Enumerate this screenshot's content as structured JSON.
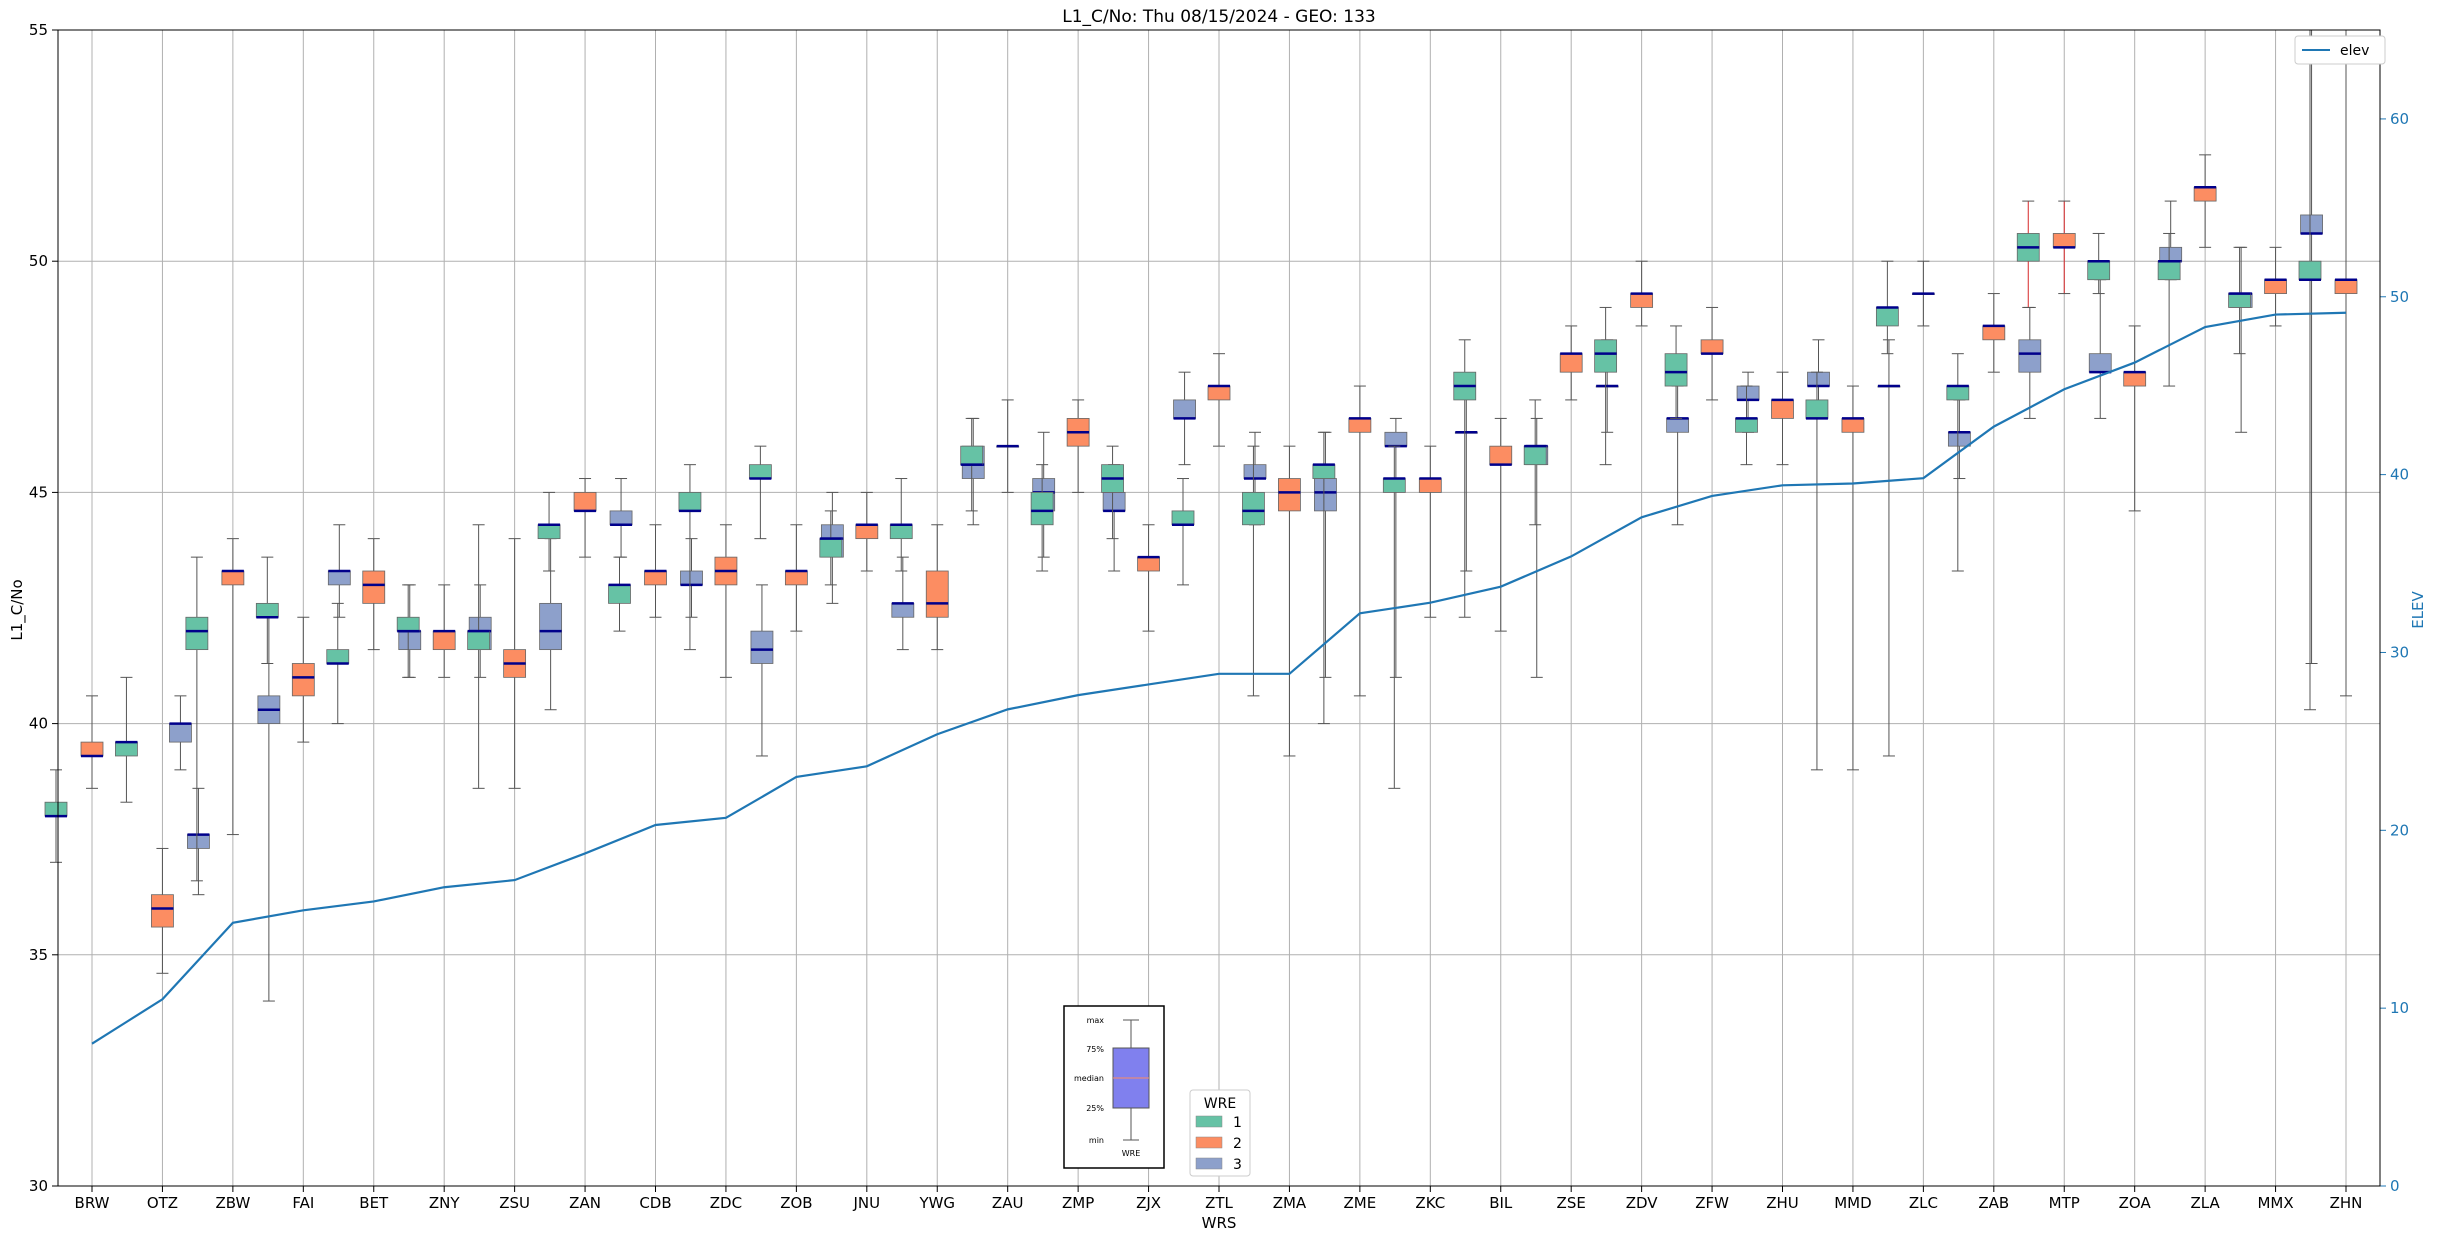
{
  "chart_data": {
    "type": "box",
    "title": "L1_C/No: Thu 08/15/2024 - GEO: 133",
    "xlabel": "WRS",
    "ylabel": "L1_C/No",
    "y2label": "ELEV",
    "ylim": [
      30,
      55
    ],
    "y2lim": [
      0,
      65
    ],
    "yticks": [
      30,
      35,
      40,
      45,
      50,
      55
    ],
    "y2ticks": [
      0,
      10,
      20,
      30,
      40,
      50,
      60
    ],
    "grid": true,
    "categories": [
      "BRW",
      "OTZ",
      "ZBW",
      "FAI",
      "BET",
      "ZNY",
      "ZSU",
      "ZAN",
      "CDB",
      "ZDC",
      "ZOB",
      "JNU",
      "YWG",
      "ZAU",
      "ZMP",
      "ZJX",
      "ZTL",
      "ZMA",
      "ZME",
      "ZKC",
      "BIL",
      "ZSE",
      "ZDV",
      "ZFW",
      "ZHU",
      "MMD",
      "ZLC",
      "ZAB",
      "MTP",
      "ZOA",
      "ZLA",
      "MMX",
      "ZHN"
    ],
    "colors": {
      "1": "#66c2a5",
      "2": "#fc8d62",
      "3": "#8da0cb",
      "elev": "#1f77b4",
      "median": "#00008b"
    },
    "box_legend": {
      "title": "WRE",
      "entries": [
        "1",
        "2",
        "3"
      ]
    },
    "line_legend": {
      "entries": [
        "elev"
      ]
    },
    "inset_key": {
      "labels": [
        "max",
        "75%",
        "median",
        "25%",
        "min"
      ],
      "xlabel": "WRE"
    },
    "elev_series": {
      "name": "elev",
      "values": [
        8.0,
        10.5,
        14.8,
        15.5,
        16.0,
        16.8,
        17.2,
        18.7,
        20.3,
        20.7,
        23.0,
        23.6,
        25.4,
        26.8,
        27.6,
        28.2,
        28.8,
        28.8,
        32.2,
        32.8,
        33.7,
        35.4,
        37.6,
        38.8,
        39.4,
        39.5,
        39.8,
        42.7,
        44.8,
        46.3,
        48.3,
        49.0,
        49.1
      ]
    },
    "boxes": [
      {
        "station": "BRW",
        "wre": 1,
        "min": 37,
        "q1": 38,
        "median": 38,
        "q3": 38.3,
        "max": 39
      },
      {
        "station": "BRW",
        "wre": 2,
        "min": 38.6,
        "q1": 39.3,
        "median": 39.3,
        "q3": 39.6,
        "max": 40.6
      },
      {
        "station": "OTZ",
        "wre": 1,
        "min": 38.3,
        "q1": 39.3,
        "median": 39.6,
        "q3": 39.6,
        "max": 41
      },
      {
        "station": "OTZ",
        "wre": 2,
        "min": 34.6,
        "q1": 35.6,
        "median": 36,
        "q3": 36.3,
        "max": 37.3
      },
      {
        "station": "OTZ",
        "wre": 3,
        "min": 36.3,
        "q1": 37.3,
        "median": 37.6,
        "q3": 37.6,
        "max": 38.6
      },
      {
        "station": "OTZ",
        "wre": 3,
        "min": 39,
        "q1": 39.6,
        "median": 40,
        "q3": 40,
        "max": 40.6
      },
      {
        "station": "ZBW",
        "wre": 1,
        "min": 36.6,
        "q1": 41.6,
        "median": 42,
        "q3": 42.3,
        "max": 43.6
      },
      {
        "station": "ZBW",
        "wre": 2,
        "min": 37.6,
        "q1": 43,
        "median": 43.3,
        "q3": 43.3,
        "max": 44
      },
      {
        "station": "ZBW",
        "wre": 3,
        "min": 34,
        "q1": 40,
        "median": 40.3,
        "q3": 40.6,
        "max": 42.3
      },
      {
        "station": "FAI",
        "wre": 1,
        "min": 41.3,
        "q1": 42.3,
        "median": 42.3,
        "q3": 42.6,
        "max": 43.6
      },
      {
        "station": "FAI",
        "wre": 2,
        "min": 39.6,
        "q1": 40.6,
        "median": 41,
        "q3": 41.3,
        "max": 42.3
      },
      {
        "station": "FAI",
        "wre": 3,
        "min": 42.3,
        "q1": 43,
        "median": 43.3,
        "q3": 43.3,
        "max": 44.3
      },
      {
        "station": "BET",
        "wre": 1,
        "min": 40,
        "q1": 41.3,
        "median": 41.3,
        "q3": 41.6,
        "max": 42.6
      },
      {
        "station": "BET",
        "wre": 2,
        "min": 41.6,
        "q1": 42.6,
        "median": 43,
        "q3": 43.3,
        "max": 44
      },
      {
        "station": "BET",
        "wre": 3,
        "min": 41,
        "q1": 41.6,
        "median": 42,
        "q3": 42,
        "max": 43
      },
      {
        "station": "ZNY",
        "wre": 1,
        "min": 41,
        "q1": 42,
        "median": 42,
        "q3": 42.3,
        "max": 43
      },
      {
        "station": "ZNY",
        "wre": 2,
        "min": 41,
        "q1": 41.6,
        "median": 42,
        "q3": 42,
        "max": 43
      },
      {
        "station": "ZNY",
        "wre": 3,
        "min": 41,
        "q1": 41.6,
        "median": 42,
        "q3": 42.3,
        "max": 43
      },
      {
        "station": "ZSU",
        "wre": 1,
        "min": 38.6,
        "q1": 41.6,
        "median": 42,
        "q3": 42,
        "max": 44.3
      },
      {
        "station": "ZSU",
        "wre": 2,
        "min": 38.6,
        "q1": 41,
        "median": 41.3,
        "q3": 41.6,
        "max": 44
      },
      {
        "station": "ZSU",
        "wre": 3,
        "min": 40.3,
        "q1": 41.6,
        "median": 42,
        "q3": 42.6,
        "max": 44
      },
      {
        "station": "ZAN",
        "wre": 1,
        "min": 43.3,
        "q1": 44,
        "median": 44.3,
        "q3": 44.3,
        "max": 45
      },
      {
        "station": "ZAN",
        "wre": 2,
        "min": 43.6,
        "q1": 44.6,
        "median": 44.6,
        "q3": 45,
        "max": 45.3
      },
      {
        "station": "ZAN",
        "wre": 3,
        "min": 43.6,
        "q1": 44.3,
        "median": 44.3,
        "q3": 44.6,
        "max": 45.3
      },
      {
        "station": "CDB",
        "wre": 1,
        "min": 42,
        "q1": 42.6,
        "median": 43,
        "q3": 43,
        "max": 43.6
      },
      {
        "station": "CDB",
        "wre": 2,
        "min": 42.3,
        "q1": 43,
        "median": 43.3,
        "q3": 43.3,
        "max": 44.3
      },
      {
        "station": "CDB",
        "wre": 3,
        "min": 42.3,
        "q1": 43,
        "median": 43,
        "q3": 43.3,
        "max": 44
      },
      {
        "station": "ZDC",
        "wre": 1,
        "min": 41.6,
        "q1": 44.6,
        "median": 44.6,
        "q3": 45,
        "max": 45.6
      },
      {
        "station": "ZDC",
        "wre": 2,
        "min": 41,
        "q1": 43,
        "median": 43.3,
        "q3": 43.6,
        "max": 44.3
      },
      {
        "station": "ZDC",
        "wre": 3,
        "min": 39.3,
        "q1": 41.3,
        "median": 41.6,
        "q3": 42,
        "max": 43
      },
      {
        "station": "ZOB",
        "wre": 1,
        "min": 44,
        "q1": 45.3,
        "median": 45.3,
        "q3": 45.6,
        "max": 46
      },
      {
        "station": "ZOB",
        "wre": 2,
        "min": 42,
        "q1": 43,
        "median": 43.3,
        "q3": 43.3,
        "max": 44.3
      },
      {
        "station": "ZOB",
        "wre": 3,
        "min": 42.6,
        "q1": 43.6,
        "median": 44,
        "q3": 44.3,
        "max": 45
      },
      {
        "station": "JNU",
        "wre": 1,
        "min": 43,
        "q1": 43.6,
        "median": 44,
        "q3": 44,
        "max": 44.6
      },
      {
        "station": "JNU",
        "wre": 2,
        "min": 43.3,
        "q1": 44,
        "median": 44.3,
        "q3": 44.3,
        "max": 45
      },
      {
        "station": "JNU",
        "wre": 3,
        "min": 41.6,
        "q1": 42.3,
        "median": 42.6,
        "q3": 42.6,
        "max": 43.6
      },
      {
        "station": "YWG",
        "wre": 1,
        "min": 43.3,
        "q1": 44,
        "median": 44.3,
        "q3": 44.3,
        "max": 45.3
      },
      {
        "station": "YWG",
        "wre": 2,
        "min": 41.6,
        "q1": 42.3,
        "median": 42.6,
        "q3": 43.3,
        "max": 44.3
      },
      {
        "station": "YWG",
        "wre": 3,
        "min": 44.3,
        "q1": 45.3,
        "median": 45.6,
        "q3": 46,
        "max": 46.6
      },
      {
        "station": "ZAU",
        "wre": 1,
        "min": 44.6,
        "q1": 45.6,
        "median": 45.6,
        "q3": 46,
        "max": 46.6
      },
      {
        "station": "ZAU",
        "wre": 2,
        "min": 45,
        "q1": 46,
        "median": 46,
        "q3": 46,
        "max": 47
      },
      {
        "station": "ZAU",
        "wre": 3,
        "min": 43.6,
        "q1": 44.6,
        "median": 45,
        "q3": 45.3,
        "max": 46.3
      },
      {
        "station": "ZMP",
        "wre": 1,
        "min": 43.3,
        "q1": 44.3,
        "median": 44.6,
        "q3": 45,
        "max": 45.6
      },
      {
        "station": "ZMP",
        "wre": 2,
        "min": 45,
        "q1": 46,
        "median": 46.3,
        "q3": 46.6,
        "max": 47
      },
      {
        "station": "ZMP",
        "wre": 3,
        "min": 43.3,
        "q1": 44.6,
        "median": 44.6,
        "q3": 45,
        "max": 45.6
      },
      {
        "station": "ZJX",
        "wre": 1,
        "min": 44,
        "q1": 45,
        "median": 45.3,
        "q3": 45.6,
        "max": 46
      },
      {
        "station": "ZJX",
        "wre": 2,
        "min": 42,
        "q1": 43.3,
        "median": 43.6,
        "q3": 43.6,
        "max": 44.3
      },
      {
        "station": "ZJX",
        "wre": 3,
        "min": 45.6,
        "q1": 46.6,
        "median": 46.6,
        "q3": 47,
        "max": 47.6
      },
      {
        "station": "ZTL",
        "wre": 1,
        "min": 43,
        "q1": 44.3,
        "median": 44.3,
        "q3": 44.6,
        "max": 45.3
      },
      {
        "station": "ZTL",
        "wre": 2,
        "min": 46,
        "q1": 47,
        "median": 47.3,
        "q3": 47.3,
        "max": 48
      },
      {
        "station": "ZTL",
        "wre": 3,
        "min": 44.3,
        "q1": 45.3,
        "median": 45.3,
        "q3": 45.6,
        "max": 46.3
      },
      {
        "station": "ZMA",
        "wre": 1,
        "min": 40.6,
        "q1": 44.3,
        "median": 44.6,
        "q3": 45,
        "max": 46
      },
      {
        "station": "ZMA",
        "wre": 2,
        "min": 39.3,
        "q1": 44.6,
        "median": 45,
        "q3": 45.3,
        "max": 46
      },
      {
        "station": "ZMA",
        "wre": 3,
        "min": 41,
        "q1": 44.6,
        "median": 45,
        "q3": 45.3,
        "max": 46.3
      },
      {
        "station": "ZME",
        "wre": 1,
        "min": 40,
        "q1": 45.3,
        "median": 45.6,
        "q3": 45.6,
        "max": 46.3
      },
      {
        "station": "ZME",
        "wre": 2,
        "min": 40.6,
        "q1": 46.3,
        "median": 46.6,
        "q3": 46.6,
        "max": 47.3
      },
      {
        "station": "ZME",
        "wre": 3,
        "min": 41,
        "q1": 46,
        "median": 46,
        "q3": 46.3,
        "max": 46.6
      },
      {
        "station": "ZKC",
        "wre": 1,
        "min": 38.6,
        "q1": 45,
        "median": 45.3,
        "q3": 45.3,
        "max": 46
      },
      {
        "station": "ZKC",
        "wre": 2,
        "min": 42.3,
        "q1": 45,
        "median": 45.3,
        "q3": 45.3,
        "max": 46
      },
      {
        "station": "ZKC",
        "wre": 3,
        "min": 43.3,
        "q1": 46.3,
        "median": 46.3,
        "q3": 46.3,
        "max": 47.3
      },
      {
        "station": "BIL",
        "wre": 1,
        "min": 42.3,
        "q1": 47,
        "median": 47.3,
        "q3": 47.6,
        "max": 48.3
      },
      {
        "station": "BIL",
        "wre": 2,
        "min": 42,
        "q1": 45.6,
        "median": 45.6,
        "q3": 46,
        "max": 46.6
      },
      {
        "station": "BIL",
        "wre": 3,
        "min": 41,
        "q1": 45.6,
        "median": 46,
        "q3": 46,
        "max": 46.6
      },
      {
        "station": "ZSE",
        "wre": 1,
        "min": 44.3,
        "q1": 45.6,
        "median": 46,
        "q3": 46,
        "max": 47
      },
      {
        "station": "ZSE",
        "wre": 2,
        "min": 47,
        "q1": 47.6,
        "median": 48,
        "q3": 48,
        "max": 48.6
      },
      {
        "station": "ZSE",
        "wre": 3,
        "min": 46.3,
        "q1": 47.3,
        "median": 47.3,
        "q3": 47.3,
        "max": 48.3
      },
      {
        "station": "ZDV",
        "wre": 1,
        "min": 45.6,
        "q1": 47.6,
        "median": 48,
        "q3": 48.3,
        "max": 49
      },
      {
        "station": "ZDV",
        "wre": 2,
        "min": 48.6,
        "q1": 49,
        "median": 49.3,
        "q3": 49.3,
        "max": 50
      },
      {
        "station": "ZDV",
        "wre": 3,
        "min": 44.3,
        "q1": 46.3,
        "median": 46.6,
        "q3": 46.6,
        "max": 47.3
      },
      {
        "station": "ZFW",
        "wre": 1,
        "min": 46.6,
        "q1": 47.3,
        "median": 47.6,
        "q3": 48,
        "max": 48.6
      },
      {
        "station": "ZFW",
        "wre": 2,
        "min": 47,
        "q1": 48,
        "median": 48,
        "q3": 48.3,
        "max": 49
      },
      {
        "station": "ZFW",
        "wre": 3,
        "min": 46.3,
        "q1": 47,
        "median": 47,
        "q3": 47.3,
        "max": 47.6
      },
      {
        "station": "ZHU",
        "wre": 1,
        "min": 45.6,
        "q1": 46.3,
        "median": 46.6,
        "q3": 46.6,
        "max": 47.3
      },
      {
        "station": "ZHU",
        "wre": 2,
        "min": 45.6,
        "q1": 46.6,
        "median": 47,
        "q3": 47,
        "max": 47.6
      },
      {
        "station": "ZHU",
        "wre": 3,
        "min": 46.6,
        "q1": 47.3,
        "median": 47.3,
        "q3": 47.6,
        "max": 48.3
      },
      {
        "station": "MMD",
        "wre": 1,
        "min": 39,
        "q1": 46.6,
        "median": 46.6,
        "q3": 47,
        "max": 47.6
      },
      {
        "station": "MMD",
        "wre": 2,
        "min": 39,
        "q1": 46.3,
        "median": 46.6,
        "q3": 46.6,
        "max": 47.3
      },
      {
        "station": "MMD",
        "wre": 3,
        "min": 39.3,
        "q1": 47.3,
        "median": 47.3,
        "q3": 47.3,
        "max": 48.3
      },
      {
        "station": "ZLC",
        "wre": 1,
        "min": 48,
        "q1": 48.6,
        "median": 49,
        "q3": 49,
        "max": 50
      },
      {
        "station": "ZLC",
        "wre": 2,
        "min": 48.6,
        "q1": 49.3,
        "median": 49.3,
        "q3": 49.3,
        "max": 50
      },
      {
        "station": "ZLC",
        "wre": 3,
        "min": 45.3,
        "q1": 46,
        "median": 46.3,
        "q3": 46.3,
        "max": 47
      },
      {
        "station": "ZAB",
        "wre": 1,
        "min": 43.3,
        "q1": 47,
        "median": 47.3,
        "q3": 47.3,
        "max": 48
      },
      {
        "station": "ZAB",
        "wre": 2,
        "min": 47.6,
        "q1": 48.3,
        "median": 48.6,
        "q3": 48.6,
        "max": 49.3
      },
      {
        "station": "ZAB",
        "wre": 3,
        "min": 46.6,
        "q1": 47.6,
        "median": 48,
        "q3": 48.3,
        "max": 49
      },
      {
        "station": "MTP",
        "wre": 1,
        "min": 49,
        "q1": 50,
        "median": 50.3,
        "q3": 50.6,
        "max": 51.3
      },
      {
        "station": "MTP",
        "wre": 2,
        "min": 49.3,
        "q1": 50.3,
        "median": 50.3,
        "q3": 50.6,
        "max": 51.3
      },
      {
        "station": "MTP",
        "wre": 3,
        "min": 46.6,
        "q1": 47.6,
        "median": 47.6,
        "q3": 48,
        "max": 49.6
      },
      {
        "station": "ZOA",
        "wre": 1,
        "min": 49.3,
        "q1": 49.6,
        "median": 50,
        "q3": 50,
        "max": 50.6
      },
      {
        "station": "ZOA",
        "wre": 2,
        "min": 44.6,
        "q1": 47.3,
        "median": 47.6,
        "q3": 47.6,
        "max": 48.6
      },
      {
        "station": "ZOA",
        "wre": 3,
        "min": 49.6,
        "q1": 50,
        "median": 50,
        "q3": 50.3,
        "max": 51.3
      },
      {
        "station": "ZLA",
        "wre": 1,
        "min": 47.3,
        "q1": 49.6,
        "median": 50,
        "q3": 50,
        "max": 50.6
      },
      {
        "station": "ZLA",
        "wre": 2,
        "min": 50.3,
        "q1": 51.3,
        "median": 51.6,
        "q3": 51.6,
        "max": 52.3
      },
      {
        "station": "ZLA",
        "wre": 3,
        "min": 46.3,
        "q1": 49,
        "median": 49.3,
        "q3": 49.3,
        "max": 50.3
      },
      {
        "station": "MMX",
        "wre": 1,
        "min": 48,
        "q1": 49,
        "median": 49.3,
        "q3": 49.3,
        "max": 50.3
      },
      {
        "station": "MMX",
        "wre": 2,
        "min": 48.6,
        "q1": 49.3,
        "median": 49.6,
        "q3": 49.6,
        "max": 50.3
      },
      {
        "station": "MMX",
        "wre": 3,
        "min": 41.3,
        "q1": 50.6,
        "median": 50.6,
        "q3": 51,
        "max": 55
      },
      {
        "station": "ZHN",
        "wre": 1,
        "min": 40.3,
        "q1": 49.6,
        "median": 49.6,
        "q3": 50,
        "max": 55
      },
      {
        "station": "ZHN",
        "wre": 2,
        "min": 40.6,
        "q1": 49.3,
        "median": 49.6,
        "q3": 49.6,
        "max": 55
      }
    ]
  }
}
